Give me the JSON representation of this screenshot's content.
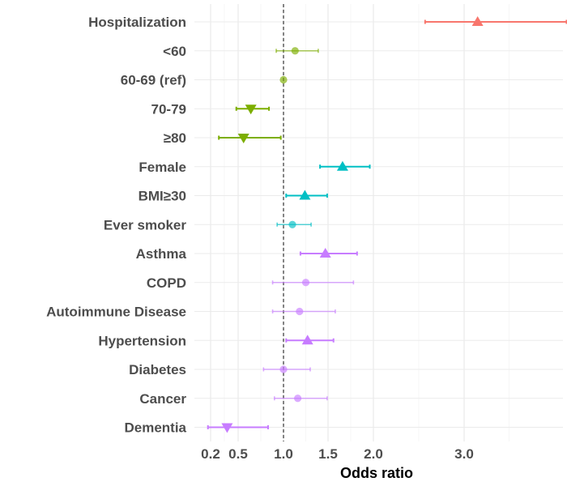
{
  "chart_data": {
    "type": "scatter",
    "title": "",
    "xlabel": "Odds ratio",
    "ylabel": "",
    "xlim": [
      -0.3,
      4.3
    ],
    "x_ticks": [
      0.2,
      0.5,
      1.0,
      1.5,
      2.0,
      3.0
    ],
    "x_tick_labels": [
      "0.2",
      "0.5",
      "1.0",
      "1.5",
      "2.0",
      "3.0"
    ],
    "reference_line": 1.0,
    "grid": true,
    "legend": "none",
    "rows": [
      {
        "label": "Hospitalization",
        "or": 3.15,
        "lo": 2.57,
        "hi": 4.14,
        "color": "#F8766D",
        "marker": "triangle-up",
        "significant": true
      },
      {
        "label": "<60",
        "or": 1.13,
        "lo": 0.92,
        "hi": 1.39,
        "color": "#7CAE00",
        "marker": "circle",
        "significant": false
      },
      {
        "label": "60-69 (ref)",
        "or": 1.0,
        "lo": 1.0,
        "hi": 1.0,
        "color": "#7CAE00",
        "marker": "circle",
        "significant": false
      },
      {
        "label": "70-79",
        "or": 0.64,
        "lo": 0.48,
        "hi": 0.84,
        "color": "#7CAE00",
        "marker": "triangle-down",
        "significant": true
      },
      {
        "label": "≥80",
        "or": 0.56,
        "lo": 0.29,
        "hi": 0.97,
        "color": "#7CAE00",
        "marker": "triangle-down",
        "significant": true
      },
      {
        "label": "Female",
        "or": 1.66,
        "lo": 1.41,
        "hi": 1.96,
        "color": "#00BFC4",
        "marker": "triangle-up",
        "significant": true
      },
      {
        "label": "BMI≥30",
        "or": 1.24,
        "lo": 1.03,
        "hi": 1.49,
        "color": "#00BFC4",
        "marker": "triangle-up",
        "significant": true
      },
      {
        "label": "Ever smoker",
        "or": 1.1,
        "lo": 0.93,
        "hi": 1.31,
        "color": "#00BFC4",
        "marker": "circle",
        "significant": false
      },
      {
        "label": "Asthma",
        "or": 1.47,
        "lo": 1.19,
        "hi": 1.82,
        "color": "#C77CFF",
        "marker": "triangle-up",
        "significant": true
      },
      {
        "label": "COPD",
        "or": 1.25,
        "lo": 0.88,
        "hi": 1.78,
        "color": "#C77CFF",
        "marker": "circle",
        "significant": false
      },
      {
        "label": "Autoimmune Disease",
        "or": 1.18,
        "lo": 0.88,
        "hi": 1.58,
        "color": "#C77CFF",
        "marker": "circle",
        "significant": false
      },
      {
        "label": "Hypertension",
        "or": 1.27,
        "lo": 1.03,
        "hi": 1.56,
        "color": "#C77CFF",
        "marker": "triangle-up",
        "significant": true
      },
      {
        "label": "Diabetes",
        "or": 1.0,
        "lo": 0.78,
        "hi": 1.3,
        "color": "#C77CFF",
        "marker": "circle",
        "significant": false
      },
      {
        "label": "Cancer",
        "or": 1.16,
        "lo": 0.9,
        "hi": 1.49,
        "color": "#C77CFF",
        "marker": "circle",
        "significant": false
      },
      {
        "label": "Dementia",
        "or": 0.38,
        "lo": 0.17,
        "hi": 0.83,
        "color": "#C77CFF",
        "marker": "triangle-down",
        "significant": true
      }
    ]
  }
}
